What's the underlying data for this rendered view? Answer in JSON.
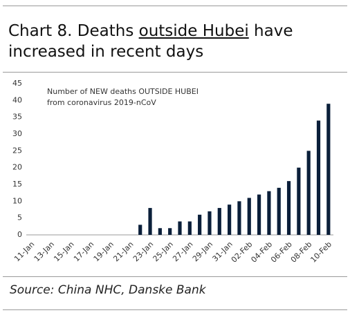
{
  "title_parts": [
    "Chart 8. Deaths ",
    "outside Hubei",
    " have increased in recent days"
  ],
  "source": "Source: China NHC, Danske Bank",
  "chart_data": {
    "type": "bar",
    "annotation": [
      "Number of NEW deaths OUTSIDE HUBEI",
      "from coronavirus 2019-nCoV"
    ],
    "categories": [
      "11-Jan",
      null,
      "13-Jan",
      null,
      "15-Jan",
      null,
      "17-Jan",
      null,
      "19-Jan",
      null,
      "21-Jan",
      null,
      "23-Jan",
      null,
      "25-Jan",
      null,
      "27-Jan",
      null,
      "29-Jan",
      null,
      "31-Jan",
      null,
      "02-Feb",
      null,
      "04-Feb",
      null,
      "06-Feb",
      null,
      "08-Feb",
      null,
      "10-Feb"
    ],
    "values": [
      0,
      0,
      0,
      0,
      0,
      0,
      0,
      0,
      0,
      0,
      0,
      3,
      8,
      2,
      2,
      4,
      4,
      6,
      7,
      8,
      9,
      10,
      11,
      12,
      13,
      14,
      16,
      20,
      25,
      34,
      39
    ],
    "color": "#0b1f3a",
    "ylim": [
      0,
      45
    ],
    "yticks": [
      0,
      5,
      10,
      15,
      20,
      25,
      30,
      35,
      40,
      45
    ],
    "grid": false
  }
}
